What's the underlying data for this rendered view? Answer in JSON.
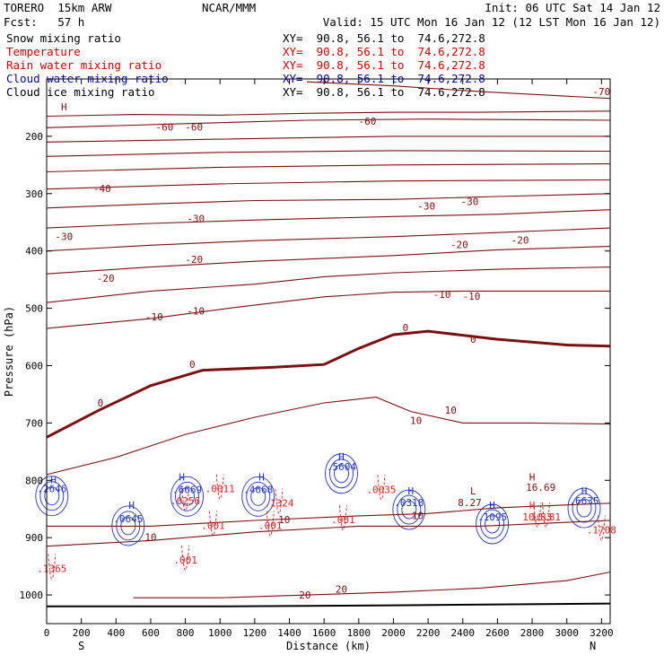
{
  "header": {
    "model": "TORERO  15km ARW",
    "center": "NCAR/MMM",
    "init": "Init: 06 UTC Sat 14 Jan 12",
    "fcst": "Fcst:   57 h",
    "valid": "Valid: 15 UTC Mon 16 Jan 12 (12 LST Mon 16 Jan 12)"
  },
  "legend": {
    "items": [
      {
        "label": "Snow mixing ratio",
        "xy": "XY=  90.8, 56.1 to  74.6,272.8",
        "color": "#000000"
      },
      {
        "label": "Temperature",
        "xy": "XY=  90.8, 56.1 to  74.6,272.8",
        "color": "#cc0000"
      },
      {
        "label": "Rain water mixing ratio",
        "xy": "XY=  90.8, 56.1 to  74.6,272.8",
        "color": "#cc0000"
      },
      {
        "label": "Cloud water mixing ratio",
        "xy": "XY=  90.8, 56.1 to  74.6,272.8",
        "color": "#0000aa"
      },
      {
        "label": "Cloud ice mixing ratio",
        "xy": "XY=  90.8, 56.1 to  74.6,272.8",
        "color": "#000000"
      }
    ]
  },
  "colors": {
    "temperature": "#7a1010",
    "rain": "#dd2222",
    "cloudwater": "#2233bb",
    "axis": "#000000"
  },
  "chart_data": {
    "type": "contour",
    "xlabel": "Distance (km)",
    "ylabel": "Pressure (hPa)",
    "xlim": [
      0,
      3250
    ],
    "ylim": [
      1050,
      100
    ],
    "xticks": [
      0,
      200,
      400,
      600,
      800,
      1000,
      1200,
      1400,
      1600,
      1800,
      2000,
      2200,
      2400,
      2600,
      2800,
      3000,
      3200
    ],
    "yticks": [
      200,
      300,
      400,
      500,
      600,
      700,
      800,
      900,
      1000
    ],
    "start_label": "S",
    "end_label": "N",
    "surface": [
      [
        0,
        1020
      ],
      [
        1000,
        1020
      ],
      [
        2000,
        1018
      ],
      [
        3250,
        1015
      ]
    ],
    "isotherms": [
      {
        "level": -70,
        "points": [
          [
            1500,
            105
          ],
          [
            2000,
            112
          ],
          [
            2500,
            122
          ],
          [
            3000,
            130
          ],
          [
            3250,
            134
          ]
        ]
      },
      {
        "level": -60,
        "points": [
          [
            0,
            165
          ],
          [
            500,
            162
          ],
          [
            1000,
            163
          ],
          [
            1500,
            160
          ],
          [
            2000,
            158
          ],
          [
            2500,
            158
          ],
          [
            3250,
            156
          ]
        ]
      },
      {
        "level": -60,
        "points": [
          [
            0,
            185
          ],
          [
            800,
            178
          ],
          [
            1500,
            172
          ],
          [
            2200,
            170
          ],
          [
            3250,
            172
          ]
        ]
      },
      {
        "level": -50,
        "points": [
          [
            0,
            210
          ],
          [
            1000,
            205
          ],
          [
            2000,
            200
          ],
          [
            3250,
            200
          ]
        ]
      },
      {
        "level": -50,
        "points": [
          [
            0,
            235
          ],
          [
            1000,
            228
          ],
          [
            2000,
            225
          ],
          [
            3250,
            226
          ]
        ]
      },
      {
        "level": -40,
        "points": [
          [
            0,
            262
          ],
          [
            1000,
            254
          ],
          [
            2000,
            250
          ],
          [
            3250,
            248
          ]
        ]
      },
      {
        "level": -40,
        "points": [
          [
            0,
            292
          ],
          [
            1000,
            283
          ],
          [
            2000,
            278
          ],
          [
            3250,
            276
          ]
        ]
      },
      {
        "level": -30,
        "points": [
          [
            0,
            325
          ],
          [
            600,
            318
          ],
          [
            1200,
            312
          ],
          [
            2000,
            310
          ],
          [
            2600,
            305
          ],
          [
            3250,
            300
          ]
        ]
      },
      {
        "level": -30,
        "points": [
          [
            0,
            360
          ],
          [
            600,
            352
          ],
          [
            1200,
            346
          ],
          [
            2000,
            340
          ],
          [
            2600,
            336
          ],
          [
            3250,
            328
          ]
        ]
      },
      {
        "level": -20,
        "points": [
          [
            0,
            400
          ],
          [
            600,
            390
          ],
          [
            1200,
            382
          ],
          [
            2000,
            375
          ],
          [
            2600,
            368
          ],
          [
            3250,
            360
          ]
        ]
      },
      {
        "level": -20,
        "points": [
          [
            0,
            440
          ],
          [
            600,
            428
          ],
          [
            1200,
            418
          ],
          [
            2000,
            408
          ],
          [
            2600,
            398
          ],
          [
            3250,
            392
          ]
        ]
      },
      {
        "level": -10,
        "points": [
          [
            0,
            490
          ],
          [
            600,
            470
          ],
          [
            1200,
            458
          ],
          [
            1600,
            445
          ],
          [
            2000,
            438
          ],
          [
            2600,
            432
          ],
          [
            3250,
            428
          ]
        ]
      },
      {
        "level": -10,
        "points": [
          [
            0,
            535
          ],
          [
            600,
            518
          ],
          [
            1100,
            498
          ],
          [
            1600,
            480
          ],
          [
            2000,
            472
          ],
          [
            2400,
            470
          ],
          [
            3250,
            470
          ]
        ]
      },
      {
        "level": 0,
        "points": [
          [
            0,
            725
          ],
          [
            300,
            678
          ],
          [
            600,
            635
          ],
          [
            900,
            608
          ],
          [
            1300,
            603
          ],
          [
            1600,
            598
          ],
          [
            1800,
            570
          ],
          [
            2000,
            546
          ],
          [
            2200,
            540
          ],
          [
            2600,
            554
          ],
          [
            3000,
            564
          ],
          [
            3250,
            566
          ]
        ]
      },
      {
        "level": 10,
        "points": [
          [
            0,
            790
          ],
          [
            400,
            760
          ],
          [
            800,
            720
          ],
          [
            1200,
            690
          ],
          [
            1600,
            665
          ],
          [
            1900,
            655
          ],
          [
            2100,
            680
          ],
          [
            2400,
            700
          ],
          [
            2800,
            700
          ],
          [
            3250,
            702
          ]
        ]
      },
      {
        "level": 10,
        "points": [
          [
            0,
            880
          ],
          [
            600,
            880
          ],
          [
            1200,
            870
          ],
          [
            1800,
            862
          ],
          [
            2200,
            858
          ],
          [
            2600,
            848
          ],
          [
            3250,
            840
          ]
        ]
      },
      {
        "level": 10,
        "points": [
          [
            0,
            915
          ],
          [
            600,
            905
          ],
          [
            1200,
            890
          ],
          [
            1800,
            880
          ],
          [
            2500,
            880
          ],
          [
            3250,
            870
          ]
        ]
      },
      {
        "level": 20,
        "points": [
          [
            500,
            1005
          ],
          [
            1000,
            1005
          ],
          [
            1500,
            1000
          ],
          [
            2000,
            995
          ],
          [
            2500,
            988
          ],
          [
            3000,
            975
          ],
          [
            3250,
            960
          ]
        ]
      }
    ],
    "labels": [
      {
        "text": "-70",
        "x": 3200,
        "y": 128,
        "series": "temperature"
      },
      {
        "text": "-60",
        "x": 680,
        "y": 190,
        "series": "temperature"
      },
      {
        "text": "-60",
        "x": 850,
        "y": 190,
        "series": "temperature"
      },
      {
        "text": "-60",
        "x": 1850,
        "y": 180,
        "series": "temperature"
      },
      {
        "text": "-40",
        "x": 320,
        "y": 297,
        "series": "temperature"
      },
      {
        "text": "-30",
        "x": 860,
        "y": 350,
        "series": "temperature"
      },
      {
        "text": "-30",
        "x": 2190,
        "y": 328,
        "series": "temperature"
      },
      {
        "text": "-30",
        "x": 2440,
        "y": 320,
        "series": "temperature"
      },
      {
        "text": "-30",
        "x": 100,
        "y": 381,
        "series": "temperature"
      },
      {
        "text": "-20",
        "x": 2380,
        "y": 395,
        "series": "temperature"
      },
      {
        "text": "-20",
        "x": 2730,
        "y": 387,
        "series": "temperature"
      },
      {
        "text": "-20",
        "x": 850,
        "y": 421,
        "series": "temperature"
      },
      {
        "text": "-20",
        "x": 340,
        "y": 454,
        "series": "temperature"
      },
      {
        "text": "-10",
        "x": 2280,
        "y": 482,
        "series": "temperature"
      },
      {
        "text": "-10",
        "x": 2450,
        "y": 485,
        "series": "temperature"
      },
      {
        "text": "-10",
        "x": 860,
        "y": 511,
        "series": "temperature"
      },
      {
        "text": "-10",
        "x": 620,
        "y": 521,
        "series": "temperature"
      },
      {
        "text": "0",
        "x": 2070,
        "y": 540,
        "series": "temperature"
      },
      {
        "text": "0",
        "x": 2460,
        "y": 560,
        "series": "temperature"
      },
      {
        "text": "0",
        "x": 840,
        "y": 604,
        "series": "temperature"
      },
      {
        "text": "0",
        "x": 310,
        "y": 671,
        "series": "temperature"
      },
      {
        "text": "10",
        "x": 2330,
        "y": 684,
        "series": "temperature"
      },
      {
        "text": "10",
        "x": 2130,
        "y": 702,
        "series": "temperature"
      },
      {
        "text": "10",
        "x": 1370,
        "y": 875,
        "series": "temperature"
      },
      {
        "text": "10",
        "x": 2140,
        "y": 868,
        "series": "temperature"
      },
      {
        "text": "10",
        "x": 600,
        "y": 905,
        "series": "temperature"
      },
      {
        "text": "20",
        "x": 1700,
        "y": 996,
        "series": "temperature"
      },
      {
        "text": "20",
        "x": 1490,
        "y": 1006,
        "series": "temperature"
      },
      {
        "text": ".2646",
        "x": 30,
        "y": 821,
        "series": "cloudwater"
      },
      {
        "text": ".0645",
        "x": 470,
        "y": 873,
        "series": "cloudwater"
      },
      {
        "text": ".6669",
        "x": 810,
        "y": 822,
        "series": "cloudwater"
      },
      {
        "text": ".4668",
        "x": 1220,
        "y": 822,
        "series": "cloudwater"
      },
      {
        "text": ".5604",
        "x": 1700,
        "y": 782,
        "series": "cloudwater"
      },
      {
        "text": ".0318",
        "x": 2090,
        "y": 845,
        "series": "cloudwater"
      },
      {
        "text": ".1095",
        "x": 2570,
        "y": 870,
        "series": "cloudwater"
      },
      {
        "text": ".6635",
        "x": 3100,
        "y": 842,
        "series": "cloudwater"
      },
      {
        "text": ".1365",
        "x": 30,
        "y": 960,
        "series": "rain"
      },
      {
        "text": ".0256",
        "x": 800,
        "y": 842,
        "series": "rain"
      },
      {
        "text": ".0011",
        "x": 1000,
        "y": 821,
        "series": "rain"
      },
      {
        "text": ".0035",
        "x": 1930,
        "y": 822,
        "series": "rain"
      },
      {
        "text": ".1324",
        "x": 1340,
        "y": 846,
        "series": "rain"
      },
      {
        "text": ".001",
        "x": 1290,
        "y": 885,
        "series": "rain"
      },
      {
        "text": ".001",
        "x": 960,
        "y": 885,
        "series": "rain"
      },
      {
        "text": ".001",
        "x": 1710,
        "y": 875,
        "series": "rain"
      },
      {
        "text": ".001",
        "x": 800,
        "y": 945,
        "series": "rain"
      },
      {
        "text": "8.27",
        "x": 2440,
        "y": 845,
        "series": "temperature"
      },
      {
        "text": "16.69",
        "x": 2850,
        "y": 818,
        "series": "temperature"
      },
      {
        "text": "10.83",
        "x": 2830,
        "y": 870,
        "series": "rain"
      },
      {
        "text": "10.81",
        "x": 2880,
        "y": 870,
        "series": "rain"
      },
      {
        "text": ".1708",
        "x": 3200,
        "y": 893,
        "series": "rain"
      }
    ],
    "extrema": [
      {
        "text": "H",
        "x": 100,
        "y": 155,
        "series": "temperature"
      },
      {
        "text": "H",
        "x": 40,
        "y": 805,
        "series": "cloudwater"
      },
      {
        "text": "H",
        "x": 490,
        "y": 850,
        "series": "cloudwater"
      },
      {
        "text": "H",
        "x": 780,
        "y": 800,
        "series": "cloudwater"
      },
      {
        "text": "H",
        "x": 1240,
        "y": 800,
        "series": "cloudwater"
      },
      {
        "text": "H",
        "x": 1700,
        "y": 765,
        "series": "cloudwater"
      },
      {
        "text": "H",
        "x": 2100,
        "y": 825,
        "series": "cloudwater"
      },
      {
        "text": "L",
        "x": 2460,
        "y": 825,
        "series": "temperature"
      },
      {
        "text": "H",
        "x": 2570,
        "y": 850,
        "series": "cloudwater"
      },
      {
        "text": "H",
        "x": 2800,
        "y": 800,
        "series": "temperature"
      },
      {
        "text": "H",
        "x": 2800,
        "y": 850,
        "series": "rain"
      },
      {
        "text": "H",
        "x": 3100,
        "y": 825,
        "series": "cloudwater"
      }
    ]
  }
}
